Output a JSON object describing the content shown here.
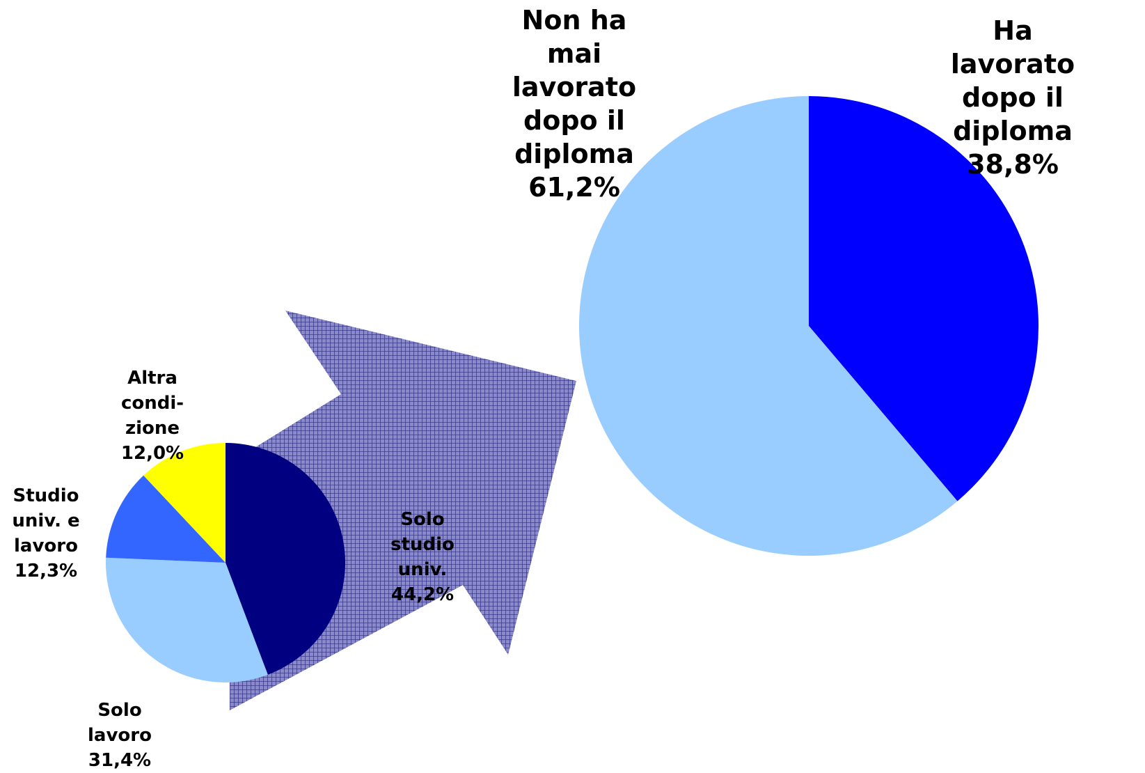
{
  "chart_data": [
    {
      "type": "pie",
      "title": "",
      "start": "top-clockwise",
      "slices": [
        {
          "label": "Ha\nlavorato\ndopo il\ndiploma\n38,8%",
          "value": 38.8,
          "color": "#0000FF"
        },
        {
          "label": "Non ha\nmai\nlavorato\ndopo il\ndiploma\n61,2%",
          "value": 61.2,
          "color": "#99CCFF"
        }
      ]
    },
    {
      "type": "pie",
      "title": "",
      "start": "top-clockwise",
      "slices": [
        {
          "label": "Solo\nstudio\nuniv.\n44,2%",
          "value": 44.2,
          "color": "#000080"
        },
        {
          "label": "Solo\nlavoro\n31,4%",
          "value": 31.4,
          "color": "#99CCFF"
        },
        {
          "label": "Studio\nuniv. e\nlavoro\n12,3%",
          "value": 12.3,
          "color": "#3366FF"
        },
        {
          "label": "Altra\ncondi-\nzione\n12,0%",
          "value": 12.0,
          "color": "#FFFF00"
        }
      ]
    }
  ],
  "arrow": {
    "name": "arrow-icon",
    "color": "#6666AA",
    "pattern": "crosshatch"
  }
}
